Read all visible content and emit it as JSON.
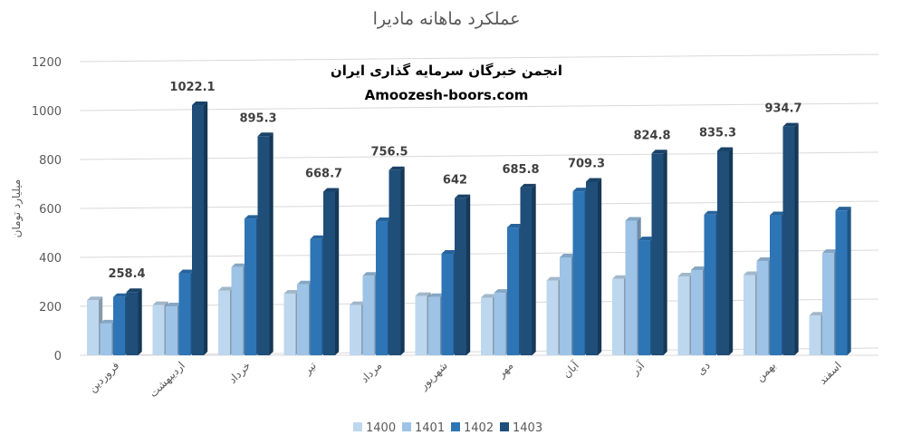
{
  "chart_data": {
    "type": "bar",
    "title": "عملکرد ماهانه مادیرا",
    "ylabel": "میلیارد تومان",
    "ylim": [
      0,
      1200
    ],
    "yticks": [
      0,
      200,
      400,
      600,
      800,
      1000,
      1200
    ],
    "grid": true,
    "legend_position": "bottom",
    "categories": [
      "فروردین",
      "اردیبهشت",
      "خرداد",
      "تیر",
      "مرداد",
      "شهریور",
      "مهر",
      "آبان",
      "آذر",
      "دی",
      "بهمن",
      "اسفند"
    ],
    "series": [
      {
        "name": "1400",
        "color": "#BDD7EE",
        "values": [
          225,
          205,
          265,
          252,
          205,
          242,
          235,
          305,
          312,
          322,
          328,
          162
        ]
      },
      {
        "name": "1401",
        "color": "#9DC3E6",
        "values": [
          130,
          200,
          360,
          290,
          325,
          238,
          255,
          400,
          550,
          348,
          385,
          418
        ]
      },
      {
        "name": "1402",
        "color": "#2E75B6",
        "values": [
          238,
          335,
          558,
          475,
          548,
          415,
          522,
          670,
          470,
          575,
          572,
          592
        ]
      },
      {
        "name": "1403",
        "color": "#1F4E79",
        "values": [
          258.4,
          1022.1,
          895.3,
          668.7,
          756.5,
          642,
          685.8,
          709.3,
          824.8,
          835.3,
          934.7,
          null
        ]
      }
    ],
    "data_labels": {
      "series": "1403",
      "values": [
        "258.4",
        "1022.1",
        "895.3",
        "668.7",
        "756.5",
        "642",
        "685.8",
        "709.3",
        "824.8",
        "835.3",
        "934.7",
        ""
      ]
    }
  },
  "watermark": {
    "line1": "انجمن خبرگان سرمایه گذاری ایران",
    "line2": "Amoozesh-boors.com"
  }
}
